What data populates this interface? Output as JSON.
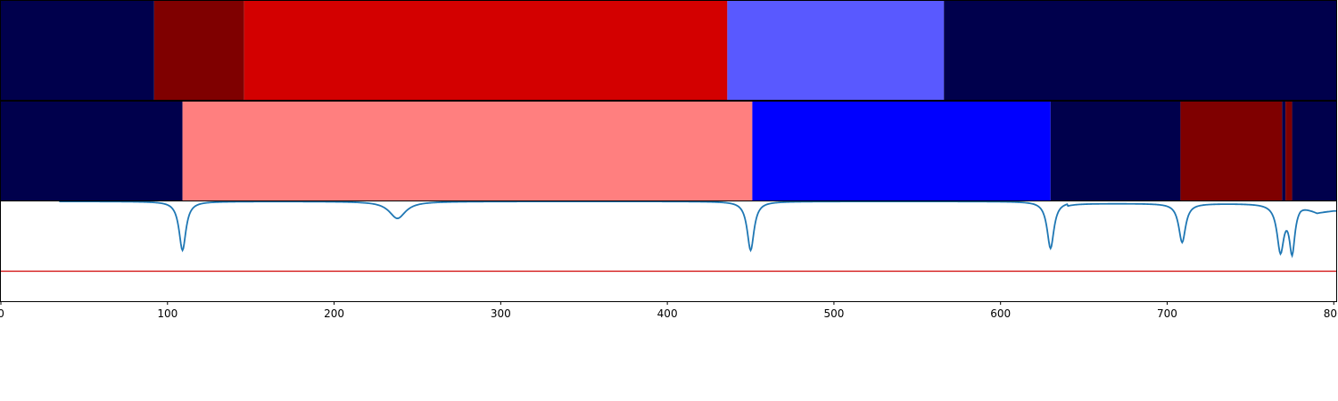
{
  "chart_data": {
    "type": "area",
    "title": "",
    "xlabel": "",
    "ylabel": "",
    "xlim": [
      0,
      802
    ],
    "x_ticks": [
      0,
      100,
      200,
      300,
      400,
      500,
      600,
      700,
      800
    ],
    "colors": {
      "dark_navy": "#00004c",
      "dark_red": "#7f0000",
      "red": "#d30000",
      "light_blue": "#5959ff",
      "pink": "#ff7f7f",
      "blue": "#0000ff",
      "line": "#1f77b4",
      "threshold": "#d62728"
    },
    "segment_tracks": [
      {
        "segments": [
          {
            "start": 0,
            "end": 92,
            "color": "#00004c"
          },
          {
            "start": 92,
            "end": 146,
            "color": "#7f0000"
          },
          {
            "start": 146,
            "end": 436,
            "color": "#d30000"
          },
          {
            "start": 436,
            "end": 566,
            "color": "#5959ff"
          },
          {
            "start": 566,
            "end": 802,
            "color": "#00004c"
          }
        ]
      },
      {
        "segments": [
          {
            "start": 0,
            "end": 109,
            "color": "#00004c"
          },
          {
            "start": 109,
            "end": 451,
            "color": "#ff7f7f"
          },
          {
            "start": 451,
            "end": 630,
            "color": "#0000ff"
          },
          {
            "start": 630,
            "end": 708,
            "color": "#00004c"
          },
          {
            "start": 708,
            "end": 769,
            "color": "#7f0000"
          },
          {
            "start": 769,
            "end": 771,
            "color": "#00004c"
          },
          {
            "start": 771,
            "end": 775,
            "color": "#7f0000"
          },
          {
            "start": 775,
            "end": 802,
            "color": "#00004c"
          }
        ]
      }
    ],
    "signal": {
      "ylim": [
        0,
        1
      ],
      "threshold": 0.3,
      "baseline": 1.0,
      "start_x": 35,
      "dips": [
        {
          "x": 109,
          "depth": 0.49,
          "width": 2.5
        },
        {
          "x": 238,
          "depth": 0.17,
          "width": 6
        },
        {
          "x": 450,
          "depth": 0.49,
          "width": 2.5
        },
        {
          "x": 630,
          "depth": 0.47,
          "width": 2.5
        },
        {
          "x": 709,
          "depth": 0.39,
          "width": 2.5
        },
        {
          "x": 768,
          "depth": 0.47,
          "width": 2.5
        },
        {
          "x": 775,
          "depth": 0.47,
          "width": 2.0
        }
      ]
    }
  }
}
